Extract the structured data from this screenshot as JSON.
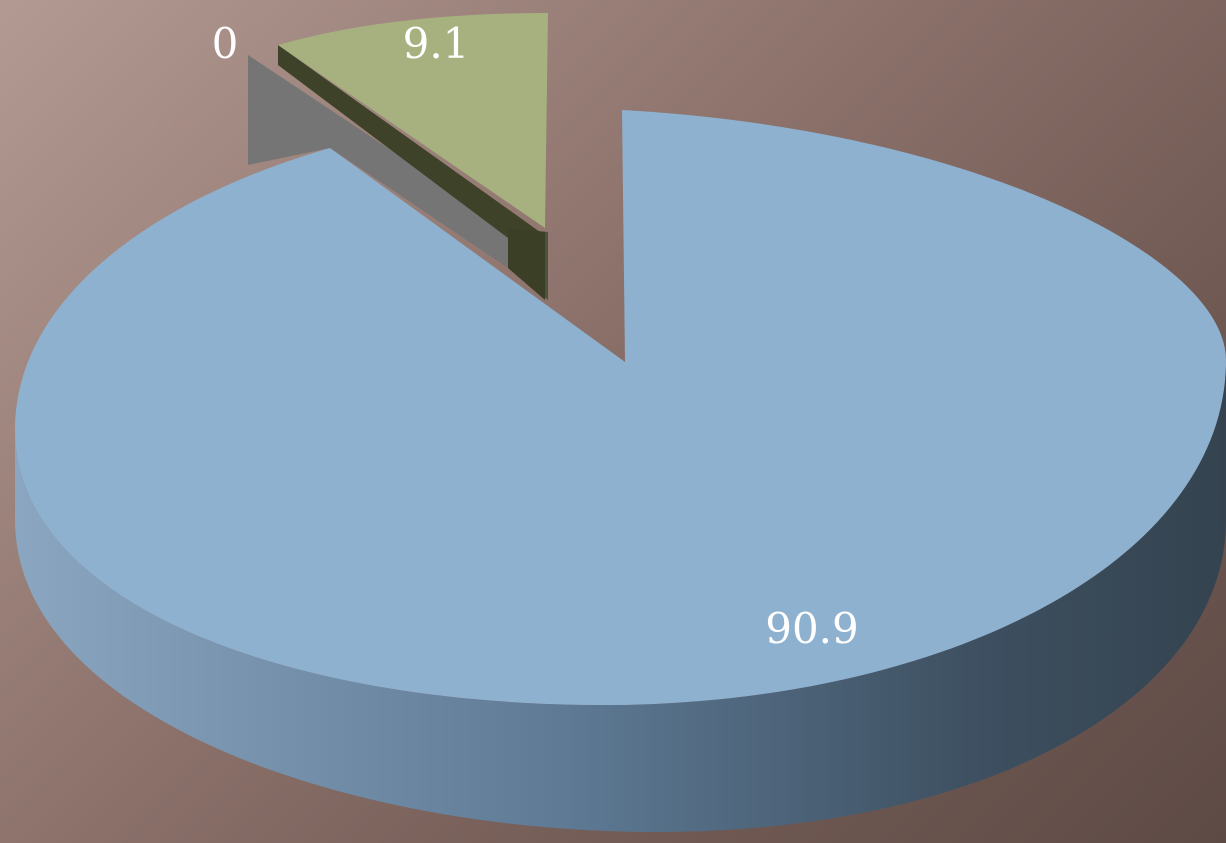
{
  "chart_data": {
    "type": "pie",
    "style": "3d-exploded",
    "slices": [
      {
        "value": 90.9,
        "label": "90.9",
        "color": "#8fb1d0"
      },
      {
        "value": 0,
        "label": "0",
        "color": "#7b7b7b"
      },
      {
        "value": 9.1,
        "label": "9.1",
        "color": "#a6b17f"
      }
    ],
    "title": "",
    "legend": "none"
  }
}
